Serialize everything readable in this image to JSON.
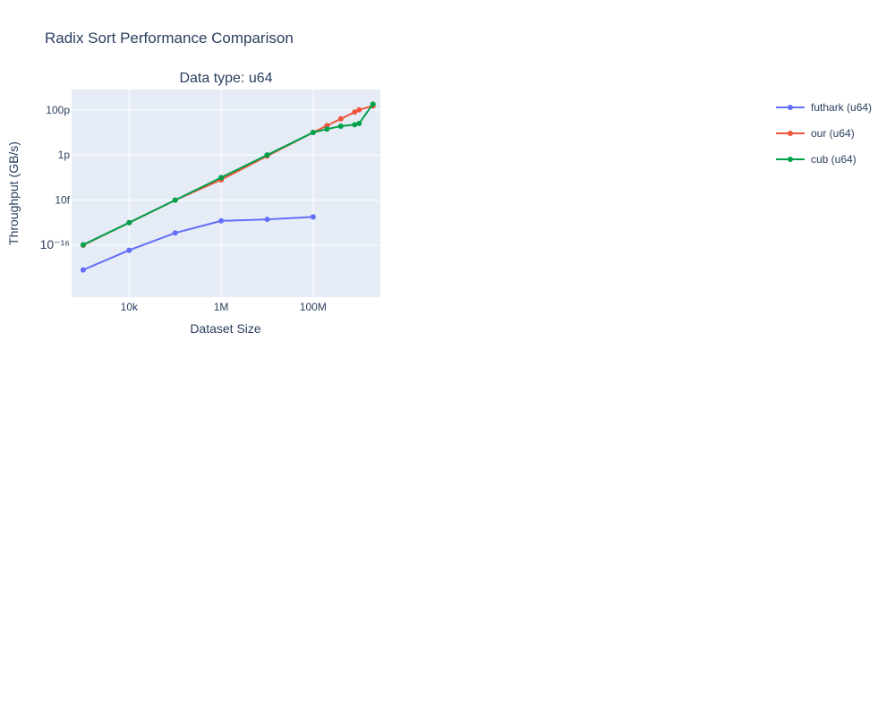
{
  "page": {
    "title": "Radix Sort Performance Comparison"
  },
  "chart_data": {
    "type": "line",
    "title": "Data type: u64",
    "xlabel": "Dataset Size",
    "ylabel": "Throughput (GB/s)",
    "x_scale": "log",
    "y_scale": "log",
    "xlim": [
      560,
      2900000000.0
    ],
    "ylim": [
      5e-19,
      8e-10
    ],
    "x_tick_values": [
      10000,
      1000000,
      100000000
    ],
    "x_tick_labels": [
      "10k",
      "1M",
      "100M"
    ],
    "y_tick_values": [
      1e-10,
      1e-12,
      1e-14,
      1e-16
    ],
    "y_tick_labels": [
      "100p",
      "1p",
      "10f",
      "10⁻¹⁶"
    ],
    "grid": true,
    "legend_position": "right",
    "series": [
      {
        "name": "futhark (u64)",
        "color": "#636efa",
        "x": [
          1000,
          10000,
          100000,
          1000000,
          10000000,
          100000000
        ],
        "y": [
          8e-18,
          6e-17,
          3.5e-16,
          1.2e-15,
          1.4e-15,
          1.8e-15
        ]
      },
      {
        "name": "our (u64)",
        "color": "#ef553b",
        "x": [
          1000,
          10000,
          100000,
          1000000,
          10000000,
          100000000,
          200000000,
          400000000,
          800000000,
          1000000000,
          2000000000
        ],
        "y": [
          1e-16,
          1e-15,
          1e-14,
          8e-14,
          9e-13,
          1e-11,
          2e-11,
          4e-11,
          8e-11,
          1e-10,
          1.5e-10
        ]
      },
      {
        "name": "cub (u64)",
        "color": "#00a14b",
        "x": [
          1000,
          10000,
          100000,
          1000000,
          10000000,
          100000000,
          200000000,
          400000000,
          800000000,
          1000000000,
          2000000000
        ],
        "y": [
          1.05e-16,
          1e-15,
          1e-14,
          1e-13,
          1e-12,
          1e-11,
          1.4e-11,
          1.9e-11,
          2.2e-11,
          2.5e-11,
          1.8e-10
        ]
      }
    ]
  }
}
